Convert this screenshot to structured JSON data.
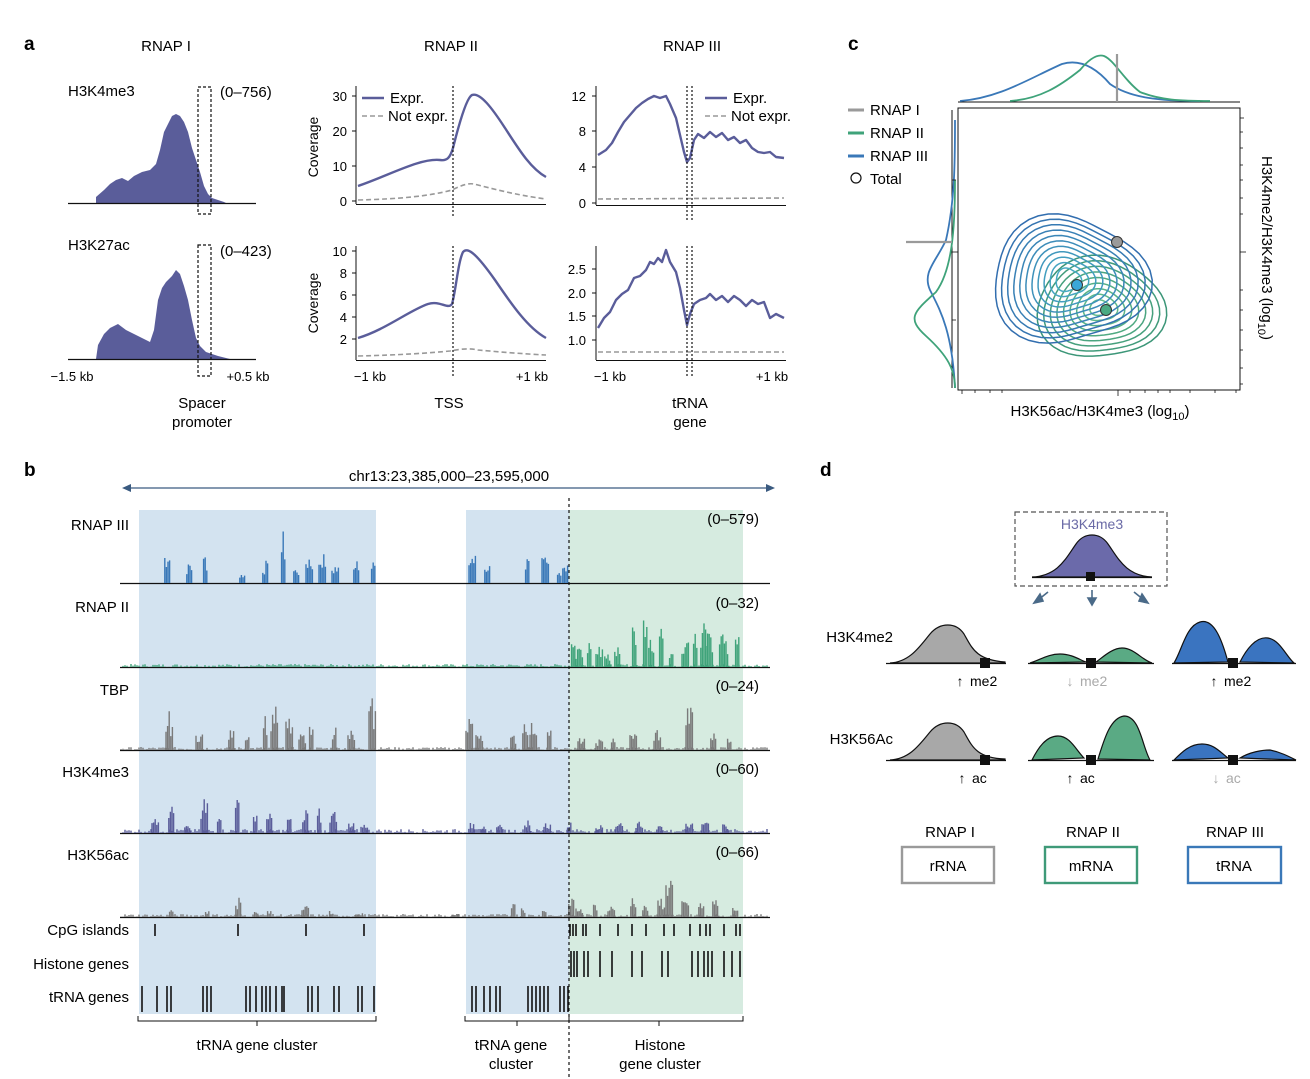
{
  "colors": {
    "navy": "#5a5d9a",
    "rnap1": "#9a9a9a",
    "rnap2": "#3fa37a",
    "rnap3": "#3a78b8",
    "blue_shade": "#d3e3f0",
    "green_shade": "#d6ebe0",
    "track_gray": "#7a7a7a",
    "rna_rnap1_border": "#9a9a9a",
    "rna_rnap2_border": "#3f9a78",
    "rna_rnap3_border": "#3a78b8"
  },
  "panel_a": {
    "letter": "a",
    "col_titles": [
      "RNAP I",
      "RNAP II",
      "RNAP III"
    ],
    "rnap1": {
      "rows": [
        {
          "mark": "H3K4me3",
          "range": "(0–756)"
        },
        {
          "mark": "H3K27ac",
          "range": "(0–423)"
        }
      ],
      "tick_left": "−1.5 kb",
      "tick_right": "+0.5 kb",
      "xlabel_line1": "Spacer",
      "xlabel_line2": "promoter"
    },
    "rnap2": {
      "ylabel": "Coverage",
      "legend_expr": "Expr.",
      "legend_not": "Not expr.",
      "top_ticks": [
        "0",
        "10",
        "20",
        "30"
      ],
      "bottom_ticks": [
        "2",
        "4",
        "6",
        "8",
        "10"
      ],
      "tick_left": "−1 kb",
      "tick_right": "+1 kb",
      "xlabel": "TSS"
    },
    "rnap3": {
      "legend_expr": "Expr.",
      "legend_not": "Not expr.",
      "top_ticks": [
        "0",
        "4",
        "8",
        "12"
      ],
      "bottom_ticks": [
        "1.0",
        "1.5",
        "2.0",
        "2.5"
      ],
      "tick_left": "−1 kb",
      "tick_right": "+1 kb",
      "xlabel_line1": "tRNA",
      "xlabel_line2": "gene"
    }
  },
  "panel_b": {
    "letter": "b",
    "region": "chr13:23,385,000–23,595,000",
    "tracks": [
      {
        "label": "RNAP III",
        "range": "(0–579)"
      },
      {
        "label": "RNAP II",
        "range": "(0–32)"
      },
      {
        "label": "TBP",
        "range": "(0–24)"
      },
      {
        "label": "H3K4me3",
        "range": "(0–60)"
      },
      {
        "label": "H3K56ac",
        "range": "(0–66)"
      }
    ],
    "annotations": [
      "CpG islands",
      "Histone genes",
      "tRNA genes"
    ],
    "clusters": [
      {
        "line1": "tRNA gene cluster",
        "line2": ""
      },
      {
        "line1": "tRNA gene",
        "line2": "cluster"
      },
      {
        "line1": "Histone",
        "line2": "gene cluster"
      }
    ]
  },
  "panel_c": {
    "letter": "c",
    "legend": [
      "RNAP I",
      "RNAP II",
      "RNAP III",
      "Total"
    ],
    "xlabel": "H3K56ac/H3K4me3 (log",
    "xlabel_sub": "10",
    "xlabel_end": ")",
    "ylabel": "H3K4me2/H3K4me3 (log",
    "ylabel_sub": "10",
    "ylabel_end": ")"
  },
  "panel_d": {
    "letter": "d",
    "top_label": "H3K4me3",
    "row1_label": "H3K4me2",
    "row2_label": "H3K56Ac",
    "row1_marks": [
      "me2",
      "me2",
      "me2"
    ],
    "row2_marks": [
      "ac",
      "ac",
      "ac"
    ],
    "pol_labels": [
      "RNAP I",
      "RNAP II",
      "RNAP III"
    ],
    "rna_labels": [
      "rRNA",
      "mRNA",
      "tRNA"
    ]
  }
}
